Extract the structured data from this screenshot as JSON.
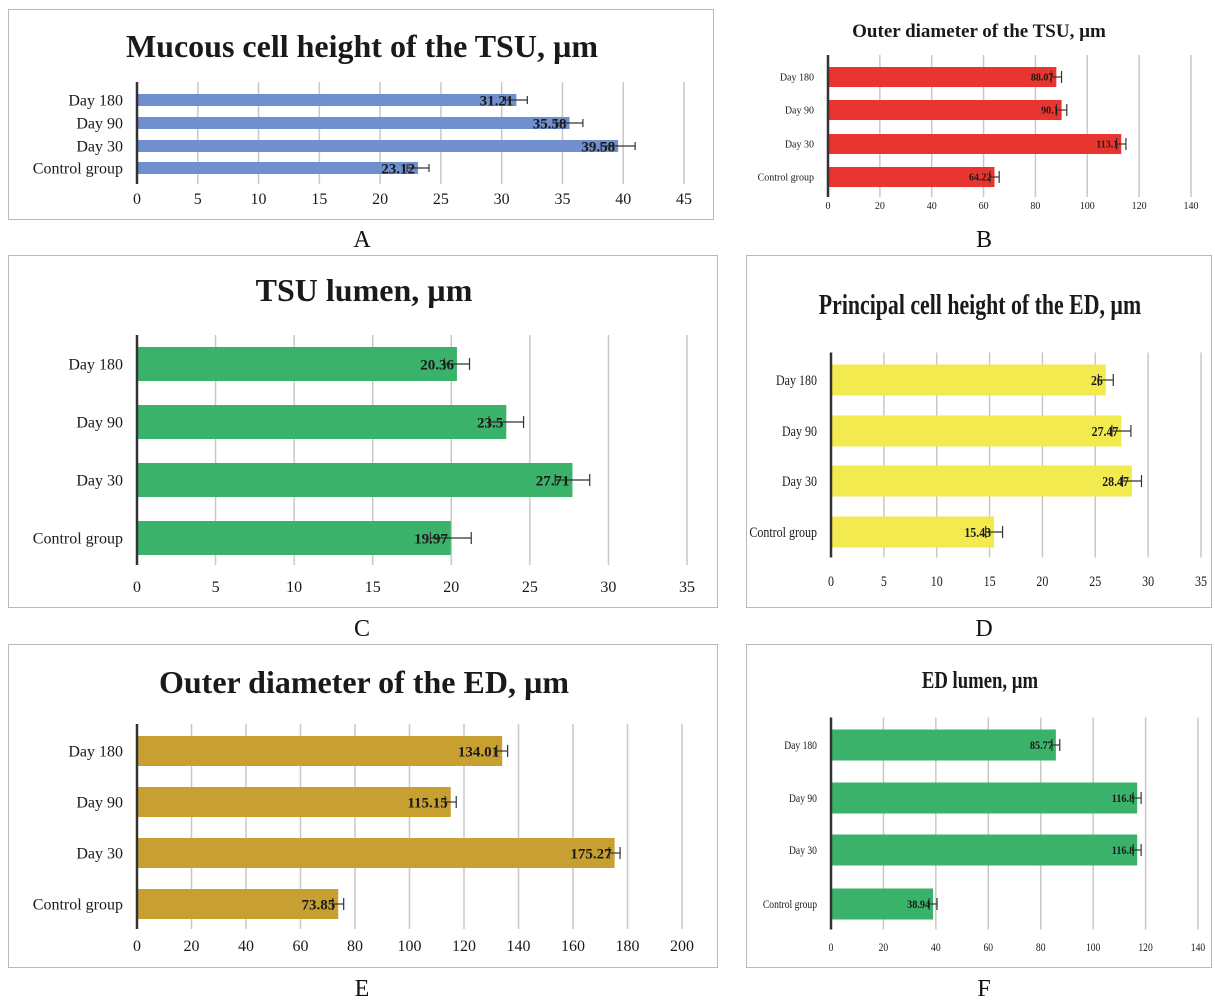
{
  "panels": [
    {
      "letter": "A",
      "chart_data": {
        "type": "bar",
        "title": "Mucous cell height of the TSU, µm",
        "categories": [
          "Day 180",
          "Day 90",
          "Day 30",
          "Control group"
        ],
        "values": [
          31.21,
          35.58,
          39.58,
          23.12
        ],
        "value_labels": [
          "31.21",
          "35.58",
          "39.58",
          "23.12"
        ],
        "error": [
          0.9,
          1.1,
          1.4,
          0.9
        ],
        "xticks": [
          "0",
          "5",
          "10",
          "15",
          "20",
          "25",
          "30",
          "35",
          "40",
          "45"
        ],
        "xlim": [
          0,
          45
        ],
        "orientation": "horizontal",
        "bar_color": "#6f8fcf",
        "grid": true
      }
    },
    {
      "letter": "B",
      "chart_data": {
        "type": "bar",
        "title": "Outer diameter of the TSU, µm",
        "categories": [
          "Day 180",
          "Day 90",
          "Day 30",
          "Control group"
        ],
        "values": [
          88.07,
          90.1,
          113.1,
          64.22
        ],
        "value_labels": [
          "88.07",
          "90.1",
          "113.1",
          "64.22"
        ],
        "error": [
          2,
          2,
          1.8,
          1.8
        ],
        "xticks": [
          "0",
          "20",
          "40",
          "60",
          "80",
          "100",
          "120",
          "140"
        ],
        "xlim": [
          0,
          140
        ],
        "orientation": "horizontal",
        "bar_color": "#e8352f",
        "grid": true
      }
    },
    {
      "letter": "C",
      "chart_data": {
        "type": "bar",
        "title": "TSU lumen, µm",
        "categories": [
          "Day 180",
          "Day 90",
          "Day 30",
          "Control group"
        ],
        "values": [
          20.36,
          23.5,
          27.71,
          19.97
        ],
        "value_labels": [
          "20.36",
          "23.5",
          "27.71",
          "19.97"
        ],
        "error": [
          0.8,
          1.1,
          1.1,
          1.3
        ],
        "xticks": [
          "0",
          "5",
          "10",
          "15",
          "20",
          "25",
          "30",
          "35"
        ],
        "xlim": [
          0,
          35
        ],
        "orientation": "horizontal",
        "bar_color": "#3ab26a",
        "grid": true
      }
    },
    {
      "letter": "D",
      "chart_data": {
        "type": "bar",
        "title": "Principal cell height of the ED, µm",
        "categories": [
          "Day 180",
          "Day 90",
          "Day 30",
          "Control group"
        ],
        "values": [
          26,
          27.47,
          28.47,
          15.43
        ],
        "value_labels": [
          "26",
          "27.47",
          "28.47",
          "15.43"
        ],
        "error": [
          0.7,
          0.9,
          0.9,
          0.8
        ],
        "xticks": [
          "0",
          "5",
          "10",
          "15",
          "20",
          "25",
          "30",
          "35"
        ],
        "xlim": [
          0,
          35
        ],
        "orientation": "horizontal",
        "bar_color": "#f2ea4e",
        "grid": true
      }
    },
    {
      "letter": "E",
      "chart_data": {
        "type": "bar",
        "title": "Outer diameter of the ED, µm",
        "categories": [
          "Day 180",
          "Day 90",
          "Day 30",
          "Control group"
        ],
        "values": [
          134.01,
          115.15,
          175.27,
          73.85
        ],
        "value_labels": [
          "134.01",
          "115.15",
          "175.27",
          "73.85"
        ],
        "error": [
          2,
          2,
          2,
          2
        ],
        "xticks": [
          "0",
          "20",
          "40",
          "60",
          "80",
          "100",
          "120",
          "140",
          "160",
          "180",
          "200"
        ],
        "xlim": [
          0,
          200
        ],
        "orientation": "horizontal",
        "bar_color": "#c8a032",
        "grid": true
      }
    },
    {
      "letter": "F",
      "chart_data": {
        "type": "bar",
        "title": "ED lumen, µm",
        "categories": [
          "Day 180",
          "Day 90",
          "Day 30",
          "Control group"
        ],
        "values": [
          85.77,
          116.8,
          116.8,
          38.94
        ],
        "value_labels": [
          "85.77",
          "116.8",
          "116.8",
          "38.94"
        ],
        "error": [
          1.5,
          1.5,
          1.5,
          1.5
        ],
        "xticks": [
          "0",
          "20",
          "40",
          "60",
          "80",
          "100",
          "120",
          "140"
        ],
        "xlim": [
          0,
          140
        ],
        "orientation": "horizontal",
        "bar_color": "#3ab26a",
        "grid": true
      }
    }
  ]
}
